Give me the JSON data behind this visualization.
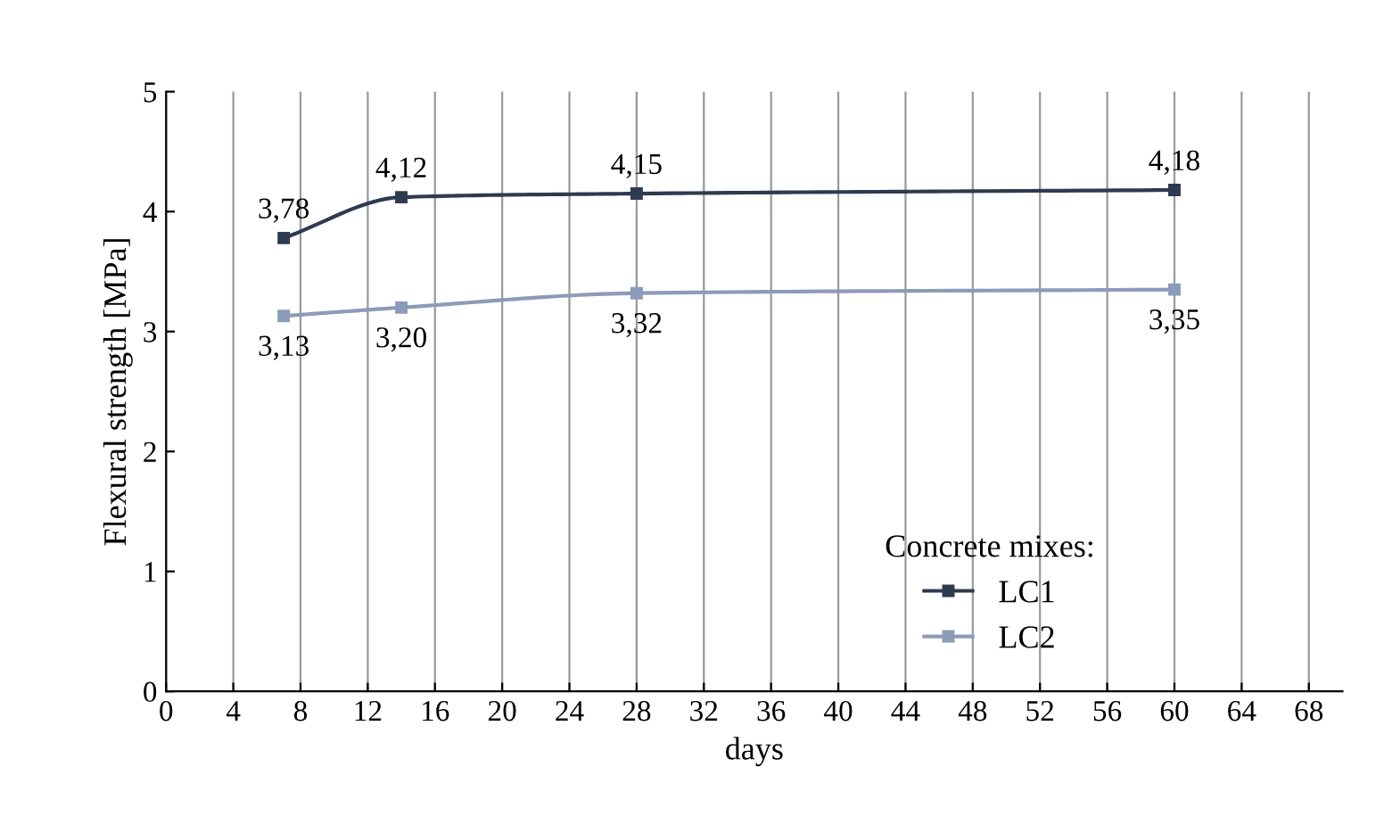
{
  "chart_data": {
    "type": "line",
    "xlabel": "days",
    "ylabel": "Flexural strength [MPa]",
    "legend_title": "Concrete mixes:",
    "xlim": [
      0,
      70
    ],
    "xticks": [
      0,
      4,
      8,
      12,
      16,
      20,
      24,
      28,
      32,
      36,
      40,
      44,
      48,
      52,
      56,
      60,
      64,
      68
    ],
    "ylim": [
      0,
      5
    ],
    "yticks": [
      0,
      1,
      2,
      3,
      4,
      5
    ],
    "grid": "x",
    "legend": "bottom right",
    "marker": "square",
    "line_style": "solid",
    "series": [
      {
        "name": "LC1",
        "color": "#2e3a4f",
        "x": [
          7,
          14,
          28,
          60
        ],
        "values": [
          3.78,
          4.12,
          4.15,
          4.18
        ],
        "value_labels": [
          "3,78",
          "4,12",
          "4,15",
          "4,18"
        ]
      },
      {
        "name": "LC2",
        "color": "#8c9bb8",
        "x": [
          7,
          14,
          28,
          60
        ],
        "values": [
          3.13,
          3.2,
          3.32,
          3.35
        ],
        "value_labels": [
          "3,13",
          "3,20",
          "3,32",
          "3,35"
        ]
      }
    ]
  }
}
